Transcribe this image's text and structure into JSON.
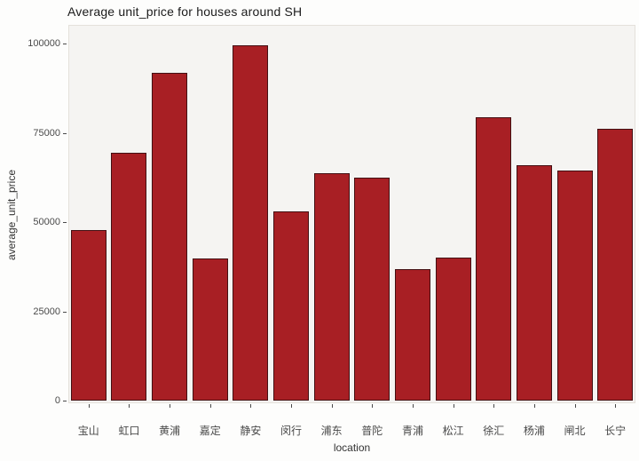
{
  "title": "Average unit_price for houses around SH",
  "axes": {
    "x_title": "location",
    "y_title": "average_unit_price"
  },
  "colors": {
    "page_background": "#FDFDFC",
    "panel_background": "#F5F4F2",
    "panel_border": "#E4E1DB",
    "bar_fill": "#A81F24",
    "bar_border": "#431013",
    "tick_text": "#4A4A4A",
    "axis_title_text": "#333333",
    "title_text": "#1B1B1B"
  },
  "chart_data": {
    "type": "bar",
    "title": "Average unit_price for houses around SH",
    "xlabel": "location",
    "ylabel": "average_unit_price",
    "categories": [
      "宝山",
      "虹口",
      "黄浦",
      "嘉定",
      "静安",
      "闵行",
      "浦东",
      "普陀",
      "青浦",
      "松江",
      "徐汇",
      "杨浦",
      "闸北",
      "长宁"
    ],
    "values": [
      47700,
      69400,
      91900,
      39800,
      99600,
      53100,
      63800,
      62400,
      36700,
      40000,
      79300,
      65900,
      64400,
      76100
    ],
    "ylim": [
      0,
      105800
    ],
    "yticks": [
      0,
      25000,
      50000,
      75000,
      100000
    ],
    "ytick_labels": [
      "0",
      "25000",
      "50000",
      "75000",
      "100000"
    ],
    "grid": false,
    "legend_position": "none",
    "bar_color": "#A81F24"
  }
}
